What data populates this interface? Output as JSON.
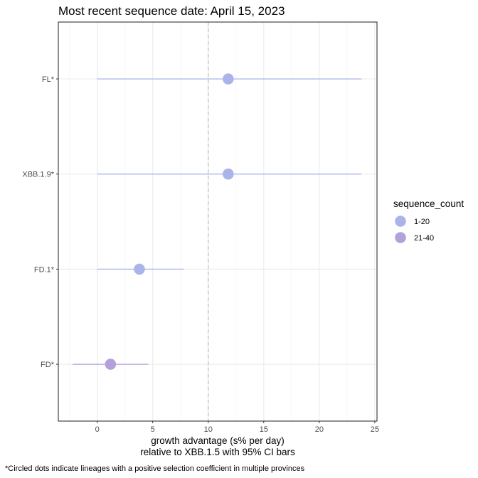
{
  "chart_data": {
    "type": "scatter",
    "title": "Most recent sequence date: April 15, 2023",
    "xlabel_line1": "growth advantage (s% per day)",
    "xlabel_line2": "relative to  XBB.1.5  with 95% CI bars",
    "ylabel": "",
    "caption": "*Circled dots indicate lineages with a positive selection coefficient in multiple provinces",
    "xlim": [
      -3.5,
      25.2
    ],
    "x_ticks": [
      0,
      5,
      10,
      15,
      20,
      25
    ],
    "x_tick_labels": [
      "0",
      "5",
      "10",
      "15",
      "20",
      "25"
    ],
    "reference_line_x": 10,
    "grid": true,
    "legend_position": "right",
    "legend": {
      "title": "sequence_count",
      "items": [
        {
          "label": "1-20",
          "color": "#aab4e8"
        },
        {
          "label": "21-40",
          "color": "#b3a1dc"
        }
      ]
    },
    "points": [
      {
        "lineage": "FL*",
        "value": 11.8,
        "ci_low": 0.0,
        "ci_high": 23.8,
        "group": "1-20"
      },
      {
        "lineage": "XBB.1.9*",
        "value": 11.8,
        "ci_low": 0.0,
        "ci_high": 23.8,
        "group": "1-20"
      },
      {
        "lineage": "FD.1*",
        "value": 3.8,
        "ci_low": 0.0,
        "ci_high": 7.8,
        "group": "1-20"
      },
      {
        "lineage": "FD*",
        "value": 1.2,
        "ci_low": -2.2,
        "ci_high": 4.6,
        "group": "21-40"
      }
    ]
  }
}
